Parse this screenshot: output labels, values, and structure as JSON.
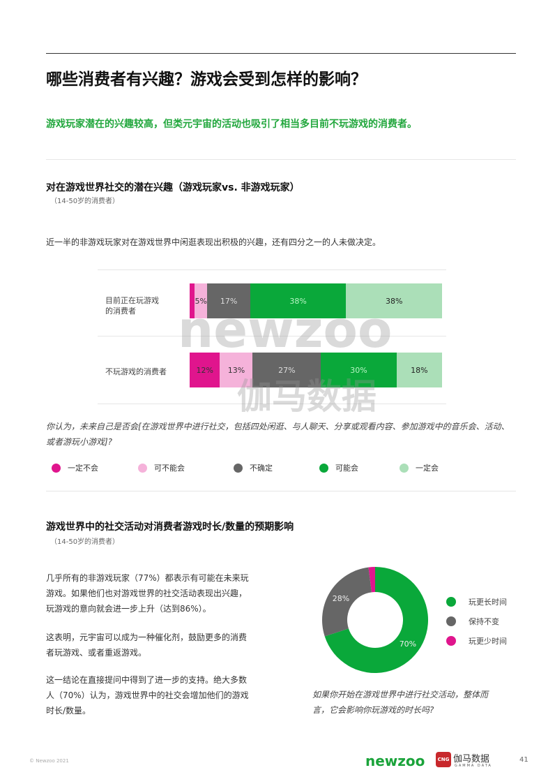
{
  "title": "哪些消费者有兴趣？游戏会受到怎样的影响？",
  "subtitle": "游戏玩家潜在的兴趣较高，但类元宇宙的活动也吸引了相当多目前不玩游戏的消费者。",
  "section1": {
    "heading": "对在游戏世界社交的潜在兴趣（游戏玩家vs. 非游戏玩家）",
    "note": "（14-50岁的消费者）",
    "text": "近一半的非游戏玩家对在游戏世界中闲逛表现出积极的兴趣，还有四分之一的人未做决定。",
    "question": "你认为，未来自己是否会[在游戏世界中进行社交，包括四处闲逛、与人聊天、分享或观看内容、参加游戏中的音乐会、活动、或者游玩小游戏]?"
  },
  "chart_data": [
    {
      "type": "bar",
      "orientation": "horizontal",
      "stacked": true,
      "categories": [
        "目前正在玩游戏\n的消费者",
        "不玩游戏的消费者"
      ],
      "category_lines": [
        [
          "目前正在玩游戏",
          "的消费者"
        ],
        [
          "不玩游戏的消费者"
        ]
      ],
      "series": [
        {
          "name": "一定不会",
          "color": "#e0158d",
          "values": [
            2,
            12
          ],
          "labels": [
            "",
            "12%"
          ]
        },
        {
          "name": "可不能会",
          "color": "#f5b2da",
          "values": [
            5,
            13
          ],
          "labels": [
            "5%",
            "13%"
          ]
        },
        {
          "name": "不确定",
          "color": "#666666",
          "values": [
            17,
            27
          ],
          "labels": [
            "17%",
            "27%"
          ]
        },
        {
          "name": "可能会",
          "color": "#0aa83a",
          "values": [
            38,
            30
          ],
          "labels": [
            "38%",
            "30%"
          ]
        },
        {
          "name": "一定会",
          "color": "#abdfb8",
          "values": [
            38,
            18
          ],
          "labels": [
            "38%",
            "18%"
          ]
        }
      ],
      "label_colors": [
        "#333",
        "#333",
        "#ddd",
        "#b8f5c5",
        "#222"
      ],
      "xlim": [
        0,
        100
      ],
      "legend": "bottom"
    },
    {
      "type": "pie",
      "donut": true,
      "slices": [
        {
          "name": "玩更长时间",
          "value": 70,
          "label": "70%",
          "color": "#0aa83a"
        },
        {
          "name": "保持不变",
          "value": 28,
          "label": "28%",
          "color": "#666666"
        },
        {
          "name": "玩更少时间",
          "value": 2,
          "label": "",
          "color": "#e0158d"
        }
      ],
      "legend": "right"
    }
  ],
  "section2": {
    "heading": "游戏世界中的社交活动对消费者游戏时长/数量的预期影响",
    "note": "（14-50岁的消费者）",
    "para1": [
      "几乎所有的非游戏玩家（77%）都表示有可能在未来玩",
      "游戏。如果他们也对游戏世界的社交活动表现出兴趣，",
      "玩游戏的意向就会进一步上升（达到86%）。"
    ],
    "para2": [
      "这表明，元宇宙可以成为一种催化剂，鼓励更多的消费",
      "者玩游戏、或者重返游戏。"
    ],
    "para3": [
      "这一结论在直接提问中得到了进一步的支持。绝大多数",
      "人（70%）认为，游戏世界中的社交会增加他们的游戏",
      "时长/数量。"
    ],
    "question": [
      "如果你开始在游戏世界中进行社交活动，整体而",
      "言，它会影响你玩游戏的时长吗?"
    ]
  },
  "footer": {
    "copyright": "© Newzoo 2021",
    "logo1": "newzoo",
    "logo2": "伽马数据",
    "logo2_sub": "GAMMA DATA",
    "logo2_badge": "CNG",
    "page": "41"
  },
  "watermark": {
    "a": "newzoo",
    "b": "伽马数据",
    "c": "GAMMA DATA"
  }
}
